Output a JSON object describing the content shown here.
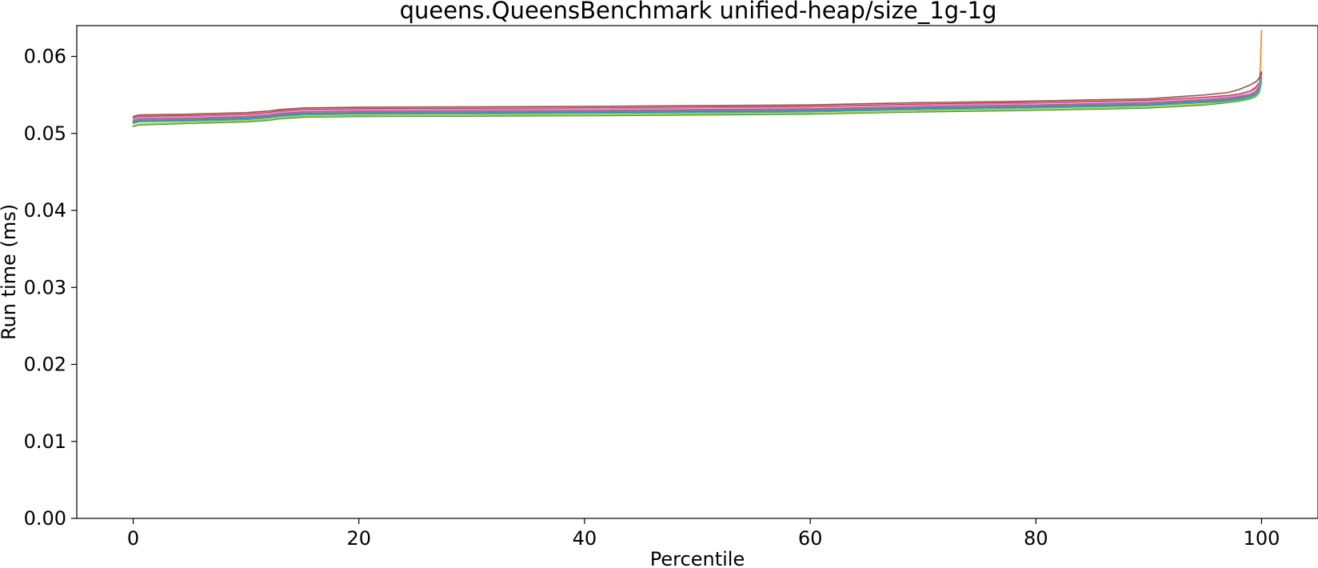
{
  "chart_data": {
    "type": "line",
    "title": "queens.QueensBenchmark unified-heap/size_1g-1g",
    "xlabel": "Percentile",
    "ylabel": "Run time (ms)",
    "xlim": [
      -5,
      105
    ],
    "ylim": [
      0.0,
      0.064
    ],
    "xticks": [
      0,
      20,
      40,
      60,
      80,
      100
    ],
    "xtick_labels": [
      "0",
      "20",
      "40",
      "60",
      "80",
      "100"
    ],
    "yticks": [
      0.0,
      0.01,
      0.02,
      0.03,
      0.04,
      0.05,
      0.06
    ],
    "ytick_labels": [
      "0.00",
      "0.01",
      "0.02",
      "0.03",
      "0.04",
      "0.05",
      "0.06"
    ],
    "grid": false,
    "legend": "none",
    "series": [
      {
        "color": "#1f77b4",
        "x": [
          0,
          0.5,
          5,
          10,
          12,
          13,
          15,
          20,
          40,
          60,
          70,
          80,
          90,
          95,
          97,
          98,
          99,
          99.5,
          99.8,
          100
        ],
        "values": [
          0.0514,
          0.0516,
          0.0517,
          0.0519,
          0.0521,
          0.0523,
          0.0525,
          0.0526,
          0.0527,
          0.0529,
          0.0532,
          0.0534,
          0.0537,
          0.0541,
          0.0543,
          0.0545,
          0.0548,
          0.0551,
          0.0556,
          0.0574
        ]
      },
      {
        "color": "#ff7f0e",
        "x": [
          0,
          0.5,
          5,
          10,
          12,
          13,
          15,
          20,
          40,
          60,
          70,
          80,
          90,
          95,
          97,
          98,
          99,
          99.5,
          99.8,
          99.9,
          100
        ],
        "values": [
          0.0516,
          0.0518,
          0.0519,
          0.0521,
          0.0523,
          0.0525,
          0.0527,
          0.0528,
          0.0529,
          0.0531,
          0.0534,
          0.0536,
          0.0539,
          0.0543,
          0.0545,
          0.0547,
          0.055,
          0.0553,
          0.0562,
          0.059,
          0.0634
        ]
      },
      {
        "color": "#2ca02c",
        "x": [
          0,
          0.5,
          5,
          10,
          12,
          13,
          15,
          20,
          40,
          60,
          70,
          80,
          90,
          95,
          97,
          98,
          99,
          99.5,
          99.8,
          100
        ],
        "values": [
          0.0509,
          0.0511,
          0.0513,
          0.0515,
          0.0517,
          0.0519,
          0.0521,
          0.0522,
          0.0523,
          0.0525,
          0.0528,
          0.053,
          0.0533,
          0.0537,
          0.054,
          0.0542,
          0.0545,
          0.0548,
          0.0553,
          0.0566
        ]
      },
      {
        "color": "#d62728",
        "x": [
          0,
          0.5,
          5,
          10,
          12,
          13,
          15,
          20,
          40,
          60,
          70,
          80,
          90,
          95,
          97,
          98,
          99,
          99.5,
          99.8,
          100
        ],
        "values": [
          0.052,
          0.0522,
          0.0523,
          0.0525,
          0.0527,
          0.0529,
          0.0531,
          0.0532,
          0.0533,
          0.0535,
          0.0538,
          0.054,
          0.0543,
          0.0547,
          0.0549,
          0.0551,
          0.0555,
          0.056,
          0.0566,
          0.0578
        ]
      },
      {
        "color": "#9467bd",
        "x": [
          0,
          0.5,
          5,
          10,
          12,
          13,
          15,
          20,
          40,
          60,
          70,
          80,
          90,
          95,
          97,
          98,
          99,
          99.5,
          99.8,
          100
        ],
        "values": [
          0.0517,
          0.0519,
          0.052,
          0.0522,
          0.0524,
          0.0526,
          0.0528,
          0.0529,
          0.053,
          0.0532,
          0.0535,
          0.0537,
          0.054,
          0.0544,
          0.0546,
          0.0548,
          0.0551,
          0.0555,
          0.056,
          0.0572
        ]
      },
      {
        "color": "#8c564b",
        "x": [
          0,
          0.5,
          5,
          10,
          12,
          13,
          15,
          20,
          40,
          60,
          70,
          80,
          90,
          95,
          97,
          98,
          99,
          99.5,
          99.8,
          100
        ],
        "values": [
          0.0522,
          0.0524,
          0.0525,
          0.0527,
          0.0529,
          0.0531,
          0.0533,
          0.0534,
          0.0535,
          0.0537,
          0.054,
          0.0542,
          0.0545,
          0.055,
          0.0553,
          0.0557,
          0.0563,
          0.0567,
          0.0572,
          0.058
        ]
      },
      {
        "color": "#e377c2",
        "x": [
          0,
          0.5,
          5,
          10,
          12,
          13,
          15,
          20,
          40,
          60,
          70,
          80,
          90,
          95,
          97,
          98,
          99,
          99.5,
          99.8,
          100
        ],
        "values": [
          0.0519,
          0.0521,
          0.0522,
          0.0524,
          0.0526,
          0.0528,
          0.053,
          0.0531,
          0.0532,
          0.0534,
          0.0537,
          0.0539,
          0.0542,
          0.0546,
          0.0548,
          0.055,
          0.0554,
          0.0558,
          0.0564,
          0.0575
        ]
      },
      {
        "color": "#7f7f7f",
        "x": [
          0,
          0.5,
          5,
          10,
          12,
          13,
          15,
          20,
          40,
          60,
          70,
          80,
          90,
          95,
          97,
          98,
          99,
          99.5,
          99.8,
          100
        ],
        "values": [
          0.0515,
          0.0517,
          0.0518,
          0.052,
          0.0522,
          0.0524,
          0.0526,
          0.0527,
          0.0528,
          0.053,
          0.0533,
          0.0535,
          0.0538,
          0.0542,
          0.0544,
          0.0546,
          0.0549,
          0.0552,
          0.0558,
          0.057
        ]
      },
      {
        "color": "#bcbd22",
        "x": [
          0,
          0.5,
          5,
          10,
          12,
          13,
          15,
          20,
          40,
          60,
          70,
          80,
          90,
          95,
          97,
          98,
          99,
          99.5,
          99.8,
          100
        ],
        "values": [
          0.051,
          0.0512,
          0.0514,
          0.0516,
          0.0518,
          0.052,
          0.0522,
          0.0523,
          0.0524,
          0.0526,
          0.0529,
          0.0531,
          0.0534,
          0.0538,
          0.0541,
          0.0543,
          0.0546,
          0.0549,
          0.0554,
          0.0567
        ]
      },
      {
        "color": "#17becf",
        "x": [
          0,
          0.5,
          5,
          10,
          12,
          13,
          15,
          20,
          40,
          60,
          70,
          80,
          90,
          95,
          97,
          98,
          99,
          99.5,
          99.8,
          100
        ],
        "values": [
          0.0513,
          0.0515,
          0.0516,
          0.0518,
          0.052,
          0.0522,
          0.0524,
          0.0525,
          0.0526,
          0.0528,
          0.0531,
          0.0533,
          0.0536,
          0.054,
          0.0542,
          0.0544,
          0.0547,
          0.055,
          0.0555,
          0.0572
        ]
      }
    ]
  }
}
